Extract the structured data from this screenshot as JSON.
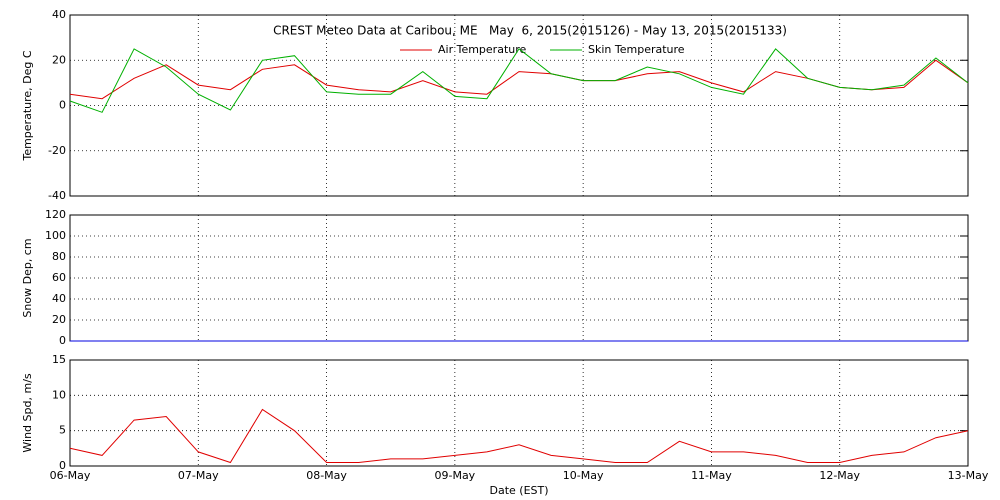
{
  "chart_data": [
    {
      "type": "line",
      "title": "CREST Meteo Data at Caribou, ME   May  6, 2015(2015126) - May 13, 2015(2015133)",
      "ylabel": "Temperature, Deg C",
      "x": [
        0,
        0.25,
        0.5,
        0.75,
        1,
        1.25,
        1.5,
        1.75,
        2,
        2.25,
        2.5,
        2.75,
        3,
        3.25,
        3.5,
        3.75,
        4,
        4.25,
        4.5,
        4.75,
        5,
        5.25,
        5.5,
        5.75,
        6,
        6.25,
        6.5,
        6.75,
        7
      ],
      "xlim": [
        0,
        7
      ],
      "xticks": [
        {
          "value": 0,
          "label": "06-May"
        },
        {
          "value": 1,
          "label": "07-May"
        },
        {
          "value": 2,
          "label": "08-May"
        },
        {
          "value": 3,
          "label": "09-May"
        },
        {
          "value": 4,
          "label": "10-May"
        },
        {
          "value": 5,
          "label": "11-May"
        },
        {
          "value": 6,
          "label": "12-May"
        },
        {
          "value": 7,
          "label": "13-May"
        }
      ],
      "ylim": [
        -40,
        40
      ],
      "yticks": [
        -40,
        -20,
        0,
        20,
        40
      ],
      "grid": true,
      "series": [
        {
          "name": "Air Temperature",
          "color": "#e00000",
          "values": [
            5,
            3,
            12,
            18,
            9,
            7,
            16,
            18,
            9,
            7,
            6,
            11,
            6,
            5,
            15,
            14,
            11,
            11,
            14,
            15,
            10,
            6,
            15,
            12,
            8,
            7,
            8,
            20,
            10
          ]
        },
        {
          "name": "Skin Temperature",
          "color": "#00b000",
          "values": [
            2,
            -3,
            25,
            17,
            5,
            -2,
            20,
            22,
            6,
            5,
            5,
            15,
            4,
            3,
            25,
            14,
            11,
            11,
            17,
            14,
            8,
            5,
            25,
            12,
            8,
            7,
            9,
            21,
            10
          ]
        }
      ]
    },
    {
      "type": "line",
      "ylabel": "Snow Dep, cm",
      "x": [
        0,
        7
      ],
      "xlim": [
        0,
        7
      ],
      "xticks": [
        0,
        1,
        2,
        3,
        4,
        5,
        6,
        7
      ],
      "ylim": [
        0,
        120
      ],
      "yticks": [
        0,
        20,
        40,
        60,
        80,
        100,
        120
      ],
      "grid": true,
      "series": [
        {
          "color": "#0000e0",
          "values": [
            0,
            0
          ]
        }
      ]
    },
    {
      "type": "line",
      "ylabel": "Wind Spd, m/s",
      "xlabel": "Date (EST)",
      "x": [
        0,
        0.25,
        0.5,
        0.75,
        1,
        1.25,
        1.5,
        1.75,
        2,
        2.25,
        2.5,
        2.75,
        3,
        3.25,
        3.5,
        3.75,
        4,
        4.25,
        4.5,
        4.75,
        5,
        5.25,
        5.5,
        5.75,
        6,
        6.25,
        6.5,
        6.75,
        7
      ],
      "xlim": [
        0,
        7
      ],
      "xticks": [
        {
          "value": 0,
          "label": "06-May"
        },
        {
          "value": 1,
          "label": "07-May"
        },
        {
          "value": 2,
          "label": "08-May"
        },
        {
          "value": 3,
          "label": "09-May"
        },
        {
          "value": 4,
          "label": "10-May"
        },
        {
          "value": 5,
          "label": "11-May"
        },
        {
          "value": 6,
          "label": "12-May"
        },
        {
          "value": 7,
          "label": "13-May"
        }
      ],
      "ylim": [
        0,
        15
      ],
      "yticks": [
        0,
        5,
        10,
        15
      ],
      "grid": true,
      "series": [
        {
          "color": "#e00000",
          "values": [
            2.5,
            1.5,
            6.5,
            7,
            2,
            0.5,
            8,
            5,
            0.5,
            0.5,
            1,
            1,
            1.5,
            2,
            3,
            1.5,
            1,
            0.5,
            0.5,
            3.5,
            2,
            2,
            1.5,
            0.5,
            0.5,
            1.5,
            2,
            4,
            5
          ]
        }
      ]
    }
  ]
}
